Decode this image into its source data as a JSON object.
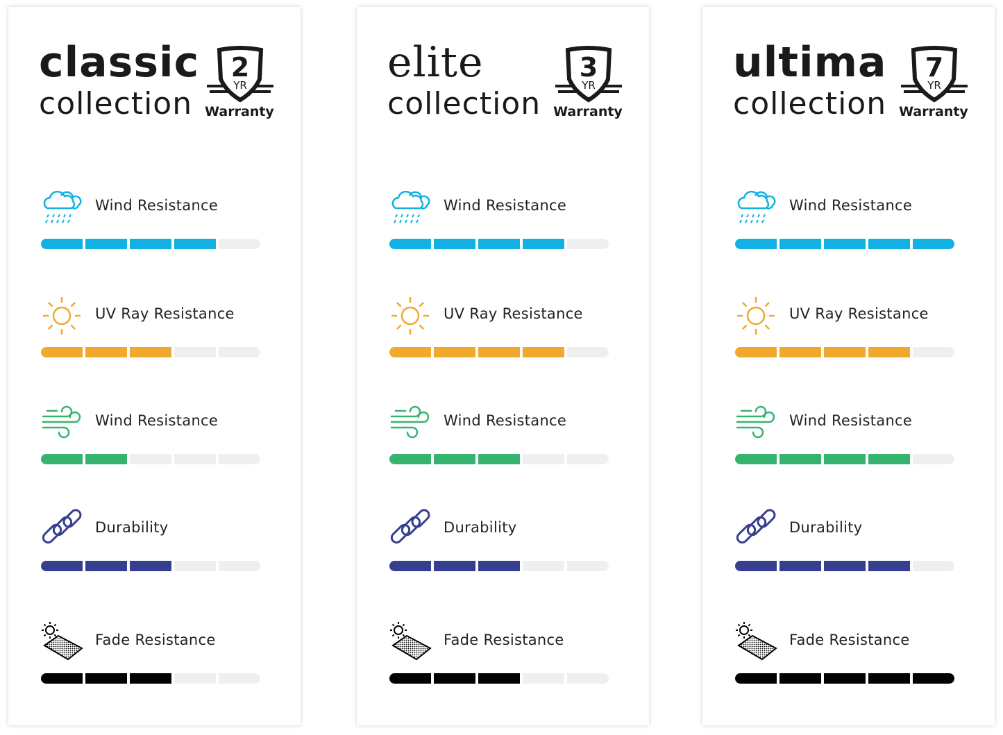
{
  "max_rating": 5,
  "metric_colors": {
    "rain": "#12b0e3",
    "sun": "#f0a92c",
    "wind": "#36b46f",
    "chain": "#363f8f",
    "fade": "#000000"
  },
  "cards": [
    {
      "title": "classic",
      "subtitle": "collection",
      "warranty_years": "2",
      "warranty_unit": "YR",
      "warranty_label": "Warranty",
      "metrics": [
        {
          "label": "Wind Resistance",
          "icon": "rain-cloud-icon",
          "rating": 4
        },
        {
          "label": "UV Ray Resistance",
          "icon": "sun-icon",
          "rating": 3
        },
        {
          "label": "Wind Resistance",
          "icon": "wind-icon",
          "rating": 2
        },
        {
          "label": "Durability",
          "icon": "chain-link-icon",
          "rating": 3
        },
        {
          "label": "Fade Resistance",
          "icon": "sun-fabric-icon",
          "rating": 3
        }
      ]
    },
    {
      "title": "elite",
      "subtitle": "collection",
      "warranty_years": "3",
      "warranty_unit": "YR",
      "warranty_label": "Warranty",
      "metrics": [
        {
          "label": "Wind Resistance",
          "icon": "rain-cloud-icon",
          "rating": 4
        },
        {
          "label": "UV Ray Resistance",
          "icon": "sun-icon",
          "rating": 4
        },
        {
          "label": "Wind Resistance",
          "icon": "wind-icon",
          "rating": 3
        },
        {
          "label": "Durability",
          "icon": "chain-link-icon",
          "rating": 3
        },
        {
          "label": "Fade Resistance",
          "icon": "sun-fabric-icon",
          "rating": 3
        }
      ]
    },
    {
      "title": "ultima",
      "subtitle": "collection",
      "warranty_years": "7",
      "warranty_unit": "YR",
      "warranty_label": "Warranty",
      "metrics": [
        {
          "label": "Wind Resistance",
          "icon": "rain-cloud-icon",
          "rating": 5
        },
        {
          "label": "UV Ray Resistance",
          "icon": "sun-icon",
          "rating": 4
        },
        {
          "label": "Wind Resistance",
          "icon": "wind-icon",
          "rating": 4
        },
        {
          "label": "Durability",
          "icon": "chain-link-icon",
          "rating": 4
        },
        {
          "label": "Fade Resistance",
          "icon": "sun-fabric-icon",
          "rating": 5
        }
      ]
    }
  ]
}
